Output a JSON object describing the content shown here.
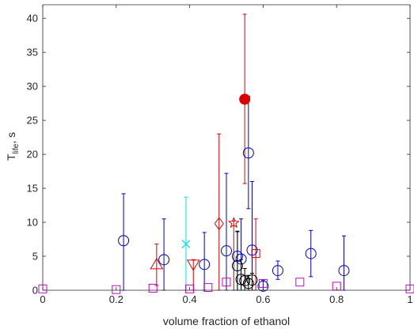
{
  "chart_data": {
    "type": "scatter",
    "xlabel": "volume fraction of ethanol",
    "ylabel_main": "T",
    "ylabel_sub": "life",
    "ylabel_tail": ", s",
    "xlim": [
      0,
      1
    ],
    "ylim": [
      0,
      42
    ],
    "x_ticks": [
      0,
      0.2,
      0.4,
      0.6,
      0.8,
      1
    ],
    "x_tick_labels": [
      "0",
      "0.2",
      "0.4",
      "0.6",
      "0.8",
      "1"
    ],
    "y_ticks": [
      0,
      5,
      10,
      15,
      20,
      25,
      30,
      35,
      40
    ],
    "y_tick_labels": [
      "0",
      "5",
      "10",
      "15",
      "20",
      "25",
      "30",
      "35",
      "40"
    ],
    "grid": false,
    "colors": {
      "blue": "#0000cc",
      "red": "#dd0000",
      "cyan": "#00e0e0",
      "black": "#000000",
      "magenta": "#cc00cc"
    },
    "series": [
      {
        "marker": "circle-open",
        "color": "#0000cc",
        "points": [
          {
            "x": 0.22,
            "y": 7.3,
            "lo": 0.0,
            "hi": 14.2
          },
          {
            "x": 0.33,
            "y": 4.5,
            "lo": 0.0,
            "hi": 10.5
          },
          {
            "x": 0.44,
            "y": 3.8,
            "lo": 0.0,
            "hi": 8.5
          },
          {
            "x": 0.5,
            "y": 5.8,
            "lo": 0.0,
            "hi": 17.2
          },
          {
            "x": 0.53,
            "y": 5.0,
            "lo": 0.0,
            "hi": 8.6
          },
          {
            "x": 0.54,
            "y": 4.6,
            "lo": 0.0,
            "hi": 10.5
          },
          {
            "x": 0.56,
            "y": 20.2,
            "lo": 12.0,
            "hi": 28.5
          },
          {
            "x": 0.57,
            "y": 5.9,
            "lo": 0.0,
            "hi": 16.0
          },
          {
            "x": 0.6,
            "y": 0.6,
            "lo": 0.0,
            "hi": 1.5
          },
          {
            "x": 0.64,
            "y": 2.9,
            "lo": 1.6,
            "hi": 4.3
          },
          {
            "x": 0.73,
            "y": 5.4,
            "lo": 2.0,
            "hi": 8.8
          },
          {
            "x": 0.82,
            "y": 2.9,
            "lo": 0.0,
            "hi": 8.0
          }
        ]
      },
      {
        "marker": "circle-filled",
        "color": "#dd0000",
        "points": [
          {
            "x": 0.55,
            "y": 28.1,
            "lo": 15.7,
            "hi": 40.6
          }
        ]
      },
      {
        "marker": "triangle-up",
        "color": "#dd0000",
        "points": [
          {
            "x": 0.31,
            "y": 3.8,
            "lo": 0.7,
            "hi": 6.8
          }
        ]
      },
      {
        "marker": "triangle-down",
        "color": "#dd0000",
        "points": [
          {
            "x": 0.41,
            "y": 3.8,
            "lo": 0.0,
            "hi": 4.5
          }
        ]
      },
      {
        "marker": "diamond",
        "color": "#dd0000",
        "points": [
          {
            "x": 0.48,
            "y": 9.8,
            "lo": 0.0,
            "hi": 23.0
          }
        ]
      },
      {
        "marker": "pentagram",
        "color": "#dd0000",
        "points": [
          {
            "x": 0.52,
            "y": 9.9,
            "lo": 0.0,
            "hi": 10.2
          }
        ]
      },
      {
        "marker": "square",
        "color": "#dd0000",
        "points": [
          {
            "x": 0.58,
            "y": 5.4,
            "lo": 0.0,
            "hi": 10.5
          }
        ]
      },
      {
        "marker": "x",
        "color": "#00e0e0",
        "points": [
          {
            "x": 0.39,
            "y": 6.8,
            "lo": 0.0,
            "hi": 13.7
          }
        ]
      },
      {
        "marker": "circle-open",
        "color": "#000000",
        "points": [
          {
            "x": 0.53,
            "y": 3.6,
            "lo": 0.0,
            "hi": 8.7
          },
          {
            "x": 0.54,
            "y": 1.6,
            "lo": 0.0,
            "hi": 4.5
          },
          {
            "x": 0.55,
            "y": 1.4,
            "lo": 0.0,
            "hi": 3.2
          },
          {
            "x": 0.56,
            "y": 1.0,
            "lo": 0.0,
            "hi": 2.2
          },
          {
            "x": 0.57,
            "y": 1.5,
            "lo": 0.0,
            "hi": 2.5
          }
        ]
      },
      {
        "marker": "square",
        "color": "#cc00cc",
        "points": [
          {
            "x": 0.0,
            "y": 0.2
          },
          {
            "x": 0.2,
            "y": 0.1
          },
          {
            "x": 0.3,
            "y": 0.3
          },
          {
            "x": 0.4,
            "y": 0.2
          },
          {
            "x": 0.45,
            "y": 0.4
          },
          {
            "x": 0.5,
            "y": 1.2
          },
          {
            "x": 0.6,
            "y": 1.0
          },
          {
            "x": 0.7,
            "y": 1.2
          },
          {
            "x": 0.8,
            "y": 0.6
          },
          {
            "x": 1.0,
            "y": 0.2
          }
        ]
      }
    ]
  }
}
